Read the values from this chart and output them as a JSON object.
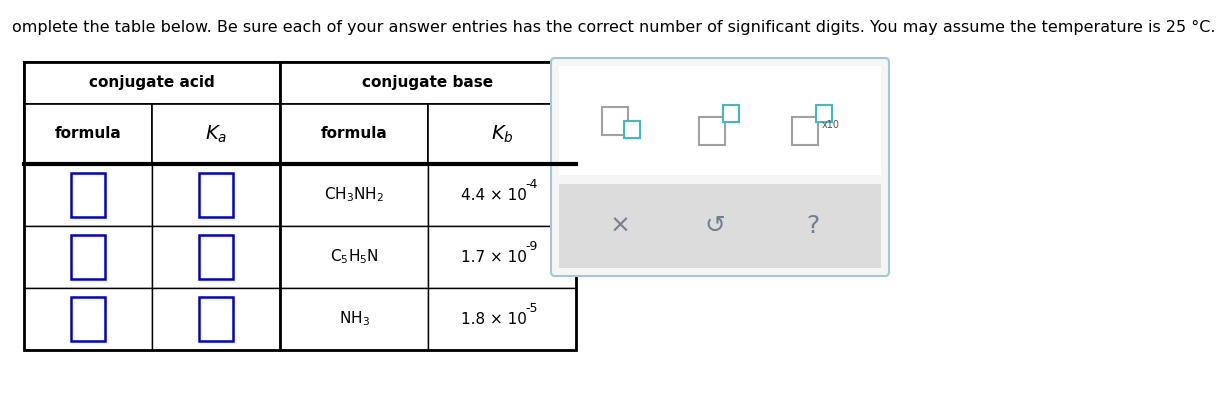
{
  "title_text": "omplete the table below. Be sure each of your answer entries has the correct number of significant digits. You may assume the temperature is 25 °C.",
  "col_header_acid": "conjugate acid",
  "col_header_base": "conjugate base",
  "row_header_formula": "formula",
  "row_header_formula2": "formula",
  "bg_color": "#ffffff",
  "text_color": "#000000",
  "title_fontsize": 11.5,
  "header_fontsize": 11,
  "cell_fontsize": 11,
  "base_formulas_latex": [
    "$\\mathregular{CH_3NH_2}$",
    "$\\mathregular{C_5H_5N}$",
    "$\\mathregular{NH_3}$"
  ],
  "kb_mantissa": [
    "4.4 × 10",
    "1.7 × 10",
    "1.8 × 10"
  ],
  "kb_exp": [
    "-4",
    "-9",
    "-5"
  ],
  "input_box_color": "#0000cd",
  "widget_border_color": "#87ceeb",
  "widget_icon_gray": "#708090",
  "widget_bg_bottom": "#dcdcdc"
}
